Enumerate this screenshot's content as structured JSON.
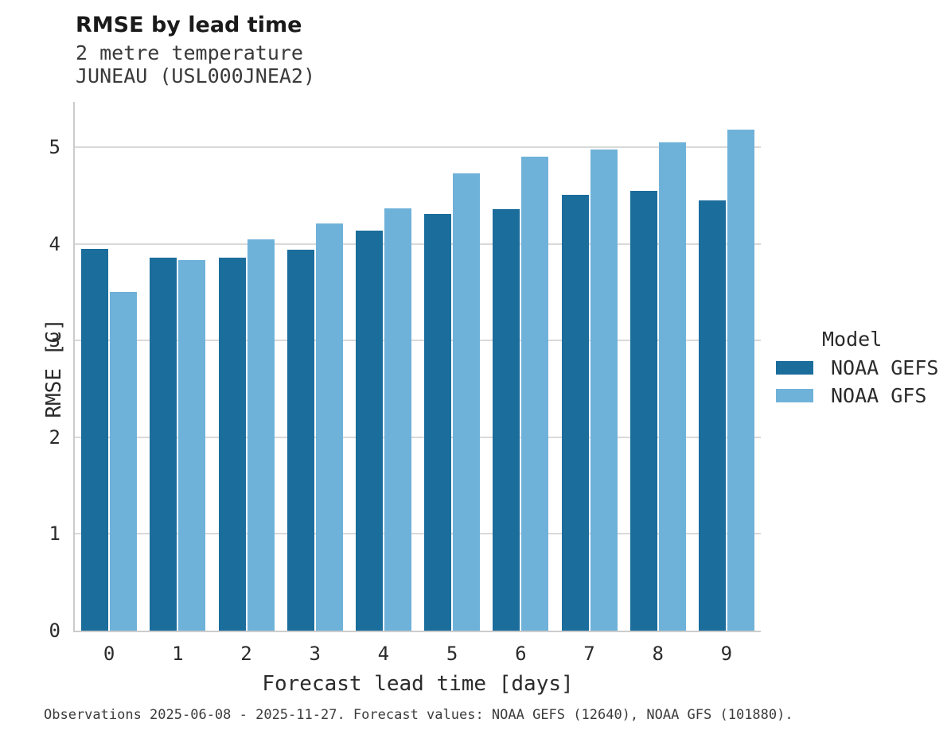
{
  "header": {
    "title": "RMSE by lead time",
    "subtitle1": "2 metre temperature",
    "subtitle2": "JUNEAU (USL000JNEA2)"
  },
  "legend": {
    "title": "Model",
    "entries": [
      {
        "label": "NOAA GEFS",
        "color": "#1b6d9c"
      },
      {
        "label": "NOAA GFS",
        "color": "#6fb2d9"
      }
    ]
  },
  "footer": {
    "note": "Observations 2025-06-08 - 2025-11-27. Forecast values: NOAA GEFS (12640), NOAA GFS (101880)."
  },
  "colors": {
    "gefs_dark_blue": "#1b6d9c",
    "gfs_light_blue": "#6fb2d9",
    "gridline_gray": "#d9d9d9",
    "spine_gray": "#cccccc"
  },
  "chart_data": {
    "type": "bar",
    "title": "RMSE by lead time",
    "subtitle": [
      "2 metre temperature",
      "JUNEAU (USL000JNEA2)"
    ],
    "categories": [
      "0",
      "1",
      "2",
      "3",
      "4",
      "5",
      "6",
      "7",
      "8",
      "9"
    ],
    "series": [
      {
        "name": "NOAA GEFS",
        "color": "#1b6d9c",
        "values": [
          3.95,
          3.86,
          3.86,
          3.94,
          4.14,
          4.31,
          4.36,
          4.51,
          4.55,
          4.45
        ]
      },
      {
        "name": "NOAA GFS",
        "color": "#6fb2d9",
        "values": [
          3.5,
          3.83,
          4.05,
          4.21,
          4.37,
          4.73,
          4.9,
          4.98,
          5.05,
          5.18
        ]
      }
    ],
    "xlabel": "Forecast lead time [days]",
    "ylabel": "RMSE [C]",
    "ylim": [
      0,
      5.47
    ],
    "yticks": [
      0,
      1,
      2,
      3,
      4,
      5
    ],
    "grid": true,
    "legend_title": "Model",
    "legend_position": "right",
    "caption": "Observations 2025-06-08 - 2025-11-27. Forecast values: NOAA GEFS (12640), NOAA GFS (101880)."
  }
}
